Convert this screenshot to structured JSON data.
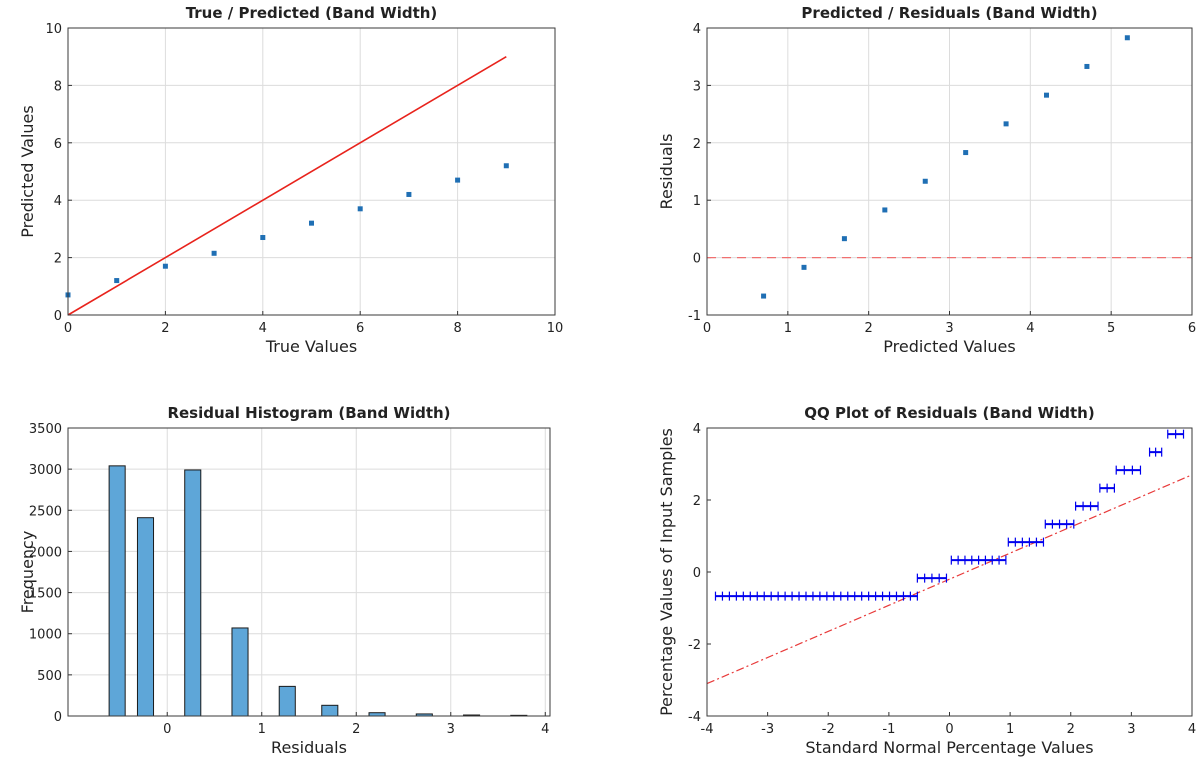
{
  "colors": {
    "point": "#1f6fb4",
    "fit_line": "#e8231c",
    "zero_line": "#f07070",
    "bar_fill": "#5ea6d8",
    "bar_edge": "#1a1a1a",
    "qq_marker": "#0000ee",
    "qq_ref": "#e83a3a"
  },
  "chart_data": [
    {
      "type": "scatter",
      "title": "True / Predicted (Band Width)",
      "xlabel": "True Values",
      "ylabel": "Predicted Values",
      "xlim": [
        0,
        10
      ],
      "ylim": [
        0,
        10
      ],
      "xticks": [
        0,
        2,
        4,
        6,
        8,
        10
      ],
      "yticks": [
        0,
        2,
        4,
        6,
        8,
        10
      ],
      "grid": true,
      "series": [
        {
          "name": "points",
          "x": [
            0,
            1,
            2,
            3,
            4,
            5,
            6,
            7,
            8,
            9
          ],
          "y": [
            0.7,
            1.2,
            1.7,
            2.15,
            2.7,
            3.2,
            3.7,
            4.2,
            4.7,
            5.2
          ]
        },
        {
          "name": "identity",
          "kind": "line",
          "x": [
            0,
            9
          ],
          "y": [
            0,
            9
          ]
        }
      ]
    },
    {
      "type": "scatter",
      "title": "Predicted / Residuals (Band Width)",
      "xlabel": "Predicted Values",
      "ylabel": "Residuals",
      "xlim": [
        0,
        6
      ],
      "ylim": [
        -1,
        4
      ],
      "xticks": [
        0,
        1,
        2,
        3,
        4,
        5,
        6
      ],
      "yticks": [
        -1,
        0,
        1,
        2,
        3,
        4
      ],
      "grid": true,
      "series": [
        {
          "name": "residuals",
          "x": [
            0.7,
            1.2,
            1.7,
            2.2,
            2.7,
            3.2,
            3.7,
            4.2,
            4.7,
            5.2
          ],
          "y": [
            -0.67,
            -0.17,
            0.33,
            0.83,
            1.33,
            1.83,
            2.33,
            2.83,
            3.33,
            3.83
          ]
        },
        {
          "name": "zero",
          "kind": "hline",
          "y": 0
        }
      ]
    },
    {
      "type": "bar",
      "title": "Residual Histogram (Band Width)",
      "xlabel": "Residuals",
      "ylabel": "Frequency",
      "xlim": [
        -1.05,
        4.05
      ],
      "ylim": [
        0,
        3500
      ],
      "xticks": [
        0,
        1,
        2,
        3,
        4
      ],
      "yticks": [
        0,
        500,
        1000,
        1500,
        2000,
        2500,
        3000,
        3500
      ],
      "grid": true,
      "bar_width": 0.17,
      "bins": [
        -0.53,
        -0.23,
        0.27,
        0.77,
        1.27,
        1.72,
        2.22,
        2.72,
        3.22,
        3.72
      ],
      "values": [
        3040,
        2410,
        2990,
        1070,
        360,
        130,
        40,
        25,
        12,
        8
      ]
    },
    {
      "type": "scatter",
      "title": "QQ Plot of Residuals (Band Width)",
      "xlabel": "Standard Normal Percentage Values",
      "ylabel": "Percentage Values of Input Samples",
      "xlim": [
        -4,
        4
      ],
      "ylim": [
        -4,
        4
      ],
      "xticks": [
        -4,
        -3,
        -2,
        -1,
        0,
        1,
        2,
        3,
        4
      ],
      "yticks": [
        -4,
        -2,
        0,
        2,
        4
      ],
      "grid": false,
      "series": [
        {
          "name": "samples",
          "marker": "+",
          "steps": [
            {
              "y": -0.67,
              "x": [
                -3.86,
                -0.53
              ]
            },
            {
              "y": -0.17,
              "x": [
                -0.53,
                -0.05
              ]
            },
            {
              "y": 0.33,
              "x": [
                0.03,
                0.93
              ]
            },
            {
              "y": 0.83,
              "x": [
                0.97,
                1.55
              ]
            },
            {
              "y": 1.33,
              "x": [
                1.58,
                2.05
              ]
            },
            {
              "y": 1.83,
              "x": [
                2.08,
                2.45
              ]
            },
            {
              "y": 2.33,
              "x": [
                2.48,
                2.72
              ]
            },
            {
              "y": 2.83,
              "x": [
                2.75,
                3.15
              ]
            },
            {
              "y": 3.33,
              "x": [
                3.3,
                3.5
              ]
            },
            {
              "y": 3.83,
              "x": [
                3.6,
                3.86
              ]
            }
          ]
        },
        {
          "name": "reference",
          "kind": "line",
          "x": [
            -4,
            4
          ],
          "y": [
            -3.1,
            2.7
          ]
        }
      ]
    }
  ]
}
